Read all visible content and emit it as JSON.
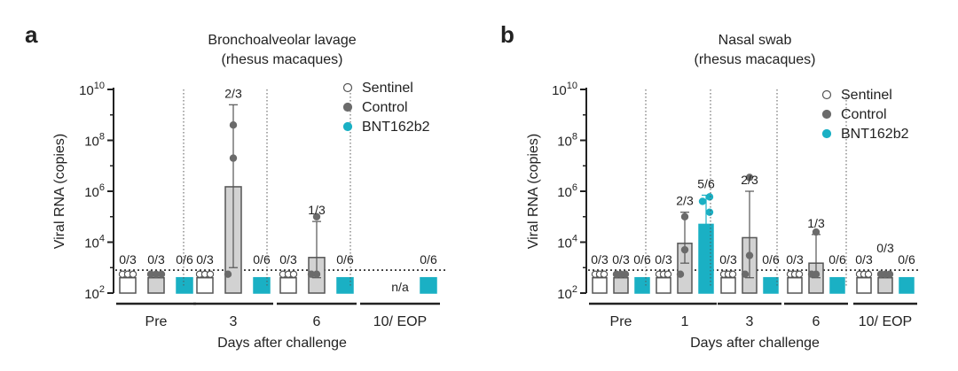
{
  "colors": {
    "sentinel": "#ffffff",
    "control": "#6b6b6b",
    "bnt": "#1ab0c4",
    "bar_control": "#d2d2d2",
    "axis": "#222222"
  },
  "chart_data": [
    {
      "panel": "a",
      "type": "bar",
      "title": [
        "Bronchoalveolar lavage",
        "(rhesus macaques)"
      ],
      "xlabel": "Days after challenge",
      "ylabel": "Viral  RNA (copies)",
      "yscale": "log",
      "ylim": [
        100,
        10000000000
      ],
      "yticks": [
        {
          "exp": "10",
          "pow": "2"
        },
        {
          "exp": "10",
          "pow": "4"
        },
        {
          "exp": "10",
          "pow": "6"
        },
        {
          "exp": "10",
          "pow": "8"
        },
        {
          "exp": "10",
          "pow": "10"
        }
      ],
      "lod": 800,
      "legend": [
        "Sentinel",
        "Control",
        "BNT162b2"
      ],
      "groups": [
        {
          "label": "Pre",
          "bars": [
            {
              "series": "Sentinel",
              "value": 400,
              "fraction": "0/3",
              "points": [
                400,
                400,
                400
              ]
            },
            {
              "series": "Control",
              "value": 400,
              "fraction": "0/3",
              "points": [
                400,
                400,
                400
              ]
            },
            {
              "series": "BNT162b2",
              "value": 400,
              "fraction": "0/6",
              "points": [
                400,
                400,
                400,
                400,
                400,
                400
              ]
            }
          ]
        },
        {
          "label": "3",
          "bars": [
            {
              "series": "Sentinel",
              "value": 400,
              "fraction": "0/3",
              "points": [
                400,
                400,
                400
              ]
            },
            {
              "series": "Control",
              "value": 1500000,
              "fraction": "2/3",
              "points": [
                400,
                20000000,
                400000000
              ],
              "err": [
                1000,
                2500000000
              ]
            },
            {
              "series": "BNT162b2",
              "value": 400,
              "fraction": "0/6",
              "points": [
                400,
                400,
                400,
                400,
                400,
                400
              ]
            }
          ]
        },
        {
          "label": "6",
          "bars": [
            {
              "series": "Sentinel",
              "value": 400,
              "fraction": "0/3",
              "points": [
                400,
                400,
                400
              ]
            },
            {
              "series": "Control",
              "value": 2500,
              "fraction": "1/3",
              "points": [
                400,
                400,
                100000
              ],
              "err": [
                400,
                65000
              ]
            },
            {
              "series": "BNT162b2",
              "value": 400,
              "fraction": "0/6",
              "points": [
                400,
                400,
                400,
                400,
                400,
                400
              ]
            }
          ]
        },
        {
          "label": "10/ EOP",
          "bars": [
            {
              "series": "Sentinel",
              "value": null,
              "fraction": "",
              "points": []
            },
            {
              "series": "Control",
              "value": null,
              "fraction": "",
              "points": [],
              "na": "n/a"
            },
            {
              "series": "BNT162b2",
              "value": 400,
              "fraction": "0/6",
              "points": [
                400,
                400,
                400,
                400,
                400,
                400
              ]
            }
          ]
        }
      ]
    },
    {
      "panel": "b",
      "type": "bar",
      "title": [
        "Nasal swab",
        "(rhesus macaques)"
      ],
      "xlabel": "Days after challenge",
      "ylabel": "Viral  RNA (copies)",
      "yscale": "log",
      "ylim": [
        100,
        10000000000
      ],
      "yticks": [
        {
          "exp": "10",
          "pow": "2"
        },
        {
          "exp": "10",
          "pow": "4"
        },
        {
          "exp": "10",
          "pow": "6"
        },
        {
          "exp": "10",
          "pow": "8"
        },
        {
          "exp": "10",
          "pow": "10"
        }
      ],
      "lod": 800,
      "legend": [
        "Sentinel",
        "Control",
        "BNT162b2"
      ],
      "groups": [
        {
          "label": "Pre",
          "bars": [
            {
              "series": "Sentinel",
              "value": 400,
              "fraction": "0/3",
              "points": [
                400,
                400,
                400
              ]
            },
            {
              "series": "Control",
              "value": 400,
              "fraction": "0/3",
              "points": [
                400,
                400,
                400
              ]
            },
            {
              "series": "BNT162b2",
              "value": 400,
              "fraction": "0/6",
              "points": [
                400,
                400,
                400,
                400,
                400,
                400
              ]
            }
          ]
        },
        {
          "label": "1",
          "bars": [
            {
              "series": "Sentinel",
              "value": 400,
              "fraction": "0/3",
              "points": [
                400,
                400,
                400
              ]
            },
            {
              "series": "Control",
              "value": 9000,
              "fraction": "2/3",
              "points": [
                400,
                5000,
                100000
              ],
              "err": [
                1500,
                150000
              ]
            },
            {
              "series": "BNT162b2",
              "value": 50000,
              "fraction": "5/6",
              "points": [
                400,
                800,
                4000,
                150000,
                400000,
                600000
              ],
              "err": [
                4000,
                700000
              ]
            }
          ]
        },
        {
          "label": "3",
          "bars": [
            {
              "series": "Sentinel",
              "value": 400,
              "fraction": "0/3",
              "points": [
                400,
                400,
                400
              ]
            },
            {
              "series": "Control",
              "value": 15000,
              "fraction": "2/3",
              "points": [
                400,
                3000,
                3500000
              ],
              "err": [
                400,
                1000000
              ]
            },
            {
              "series": "BNT162b2",
              "value": 400,
              "fraction": "0/6",
              "points": [
                400,
                400,
                400,
                400,
                400,
                400
              ]
            }
          ]
        },
        {
          "label": "6",
          "bars": [
            {
              "series": "Sentinel",
              "value": 400,
              "fraction": "0/3",
              "points": [
                400,
                400,
                400
              ]
            },
            {
              "series": "Control",
              "value": 1500,
              "fraction": "1/3",
              "points": [
                400,
                400,
                25000
              ],
              "err": [
                400,
                20000
              ]
            },
            {
              "series": "BNT162b2",
              "value": 400,
              "fraction": "0/6",
              "points": [
                400,
                400,
                400,
                400,
                400,
                400
              ]
            }
          ]
        },
        {
          "label": "10/ EOP",
          "bars": [
            {
              "series": "Sentinel",
              "value": 400,
              "fraction": "0/3",
              "points": [
                400,
                400,
                400
              ]
            },
            {
              "series": "Control",
              "value": 400,
              "fraction": "0/3",
              "points": [
                400,
                400,
                400
              ],
              "fraction_high": true
            },
            {
              "series": "BNT162b2",
              "value": 400,
              "fraction": "0/6",
              "points": [
                400,
                400,
                400,
                400,
                400,
                400
              ]
            }
          ]
        }
      ]
    }
  ]
}
